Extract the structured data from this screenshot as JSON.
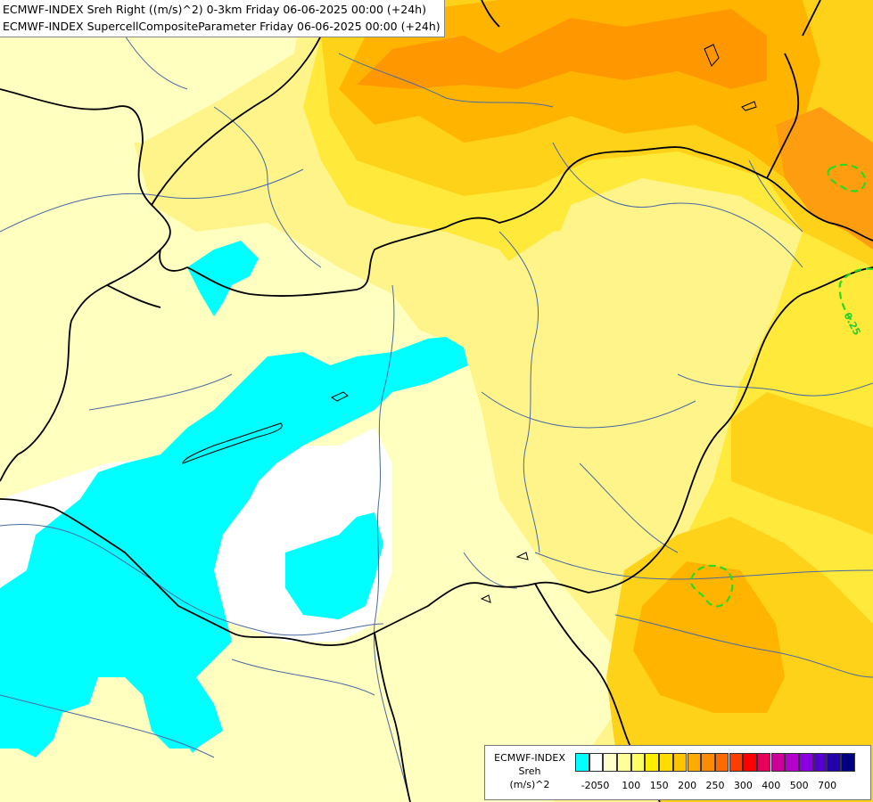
{
  "header": {
    "line1": "ECMWF-INDEX Sreh Right ((m/s)^2) 0-3km Friday 06-06-2025 00:00 (+24h)",
    "line2": "ECMWF-INDEX SupercellCompositeParameter Friday 06-06-2025 00:00 (+24h)"
  },
  "map": {
    "contour_label": "0.25",
    "colors": {
      "cyan": "#00ffff",
      "white": "#ffffff",
      "pale_yellow": "#ffffc0",
      "light_yellow": "#fff48a",
      "yellow": "#ffe93a",
      "gold": "#ffd21a",
      "amber": "#ffb400",
      "orange": "#ff8c00",
      "border": "#000000",
      "river": "#4a6aa0",
      "scp_contour": "#22dd22"
    }
  },
  "legend": {
    "title_line1": "ECMWF-INDEX",
    "title_line2": "Sreh",
    "title_line3": "(m/s)^2",
    "swatch_colors": [
      "#00ffff",
      "#ffffff",
      "#ffffcc",
      "#ffff99",
      "#ffff66",
      "#ffee00",
      "#ffdd00",
      "#ffc400",
      "#ffaa00",
      "#ff8c00",
      "#ff6a00",
      "#ff3c00",
      "#ff0000",
      "#e6005c",
      "#cc0099",
      "#b300cc",
      "#8800dd",
      "#5500cc",
      "#2200aa",
      "#000080"
    ],
    "ticks": [
      "-20",
      "50",
      "100",
      "150",
      "200",
      "250",
      "300",
      "400",
      "500",
      "700"
    ]
  }
}
